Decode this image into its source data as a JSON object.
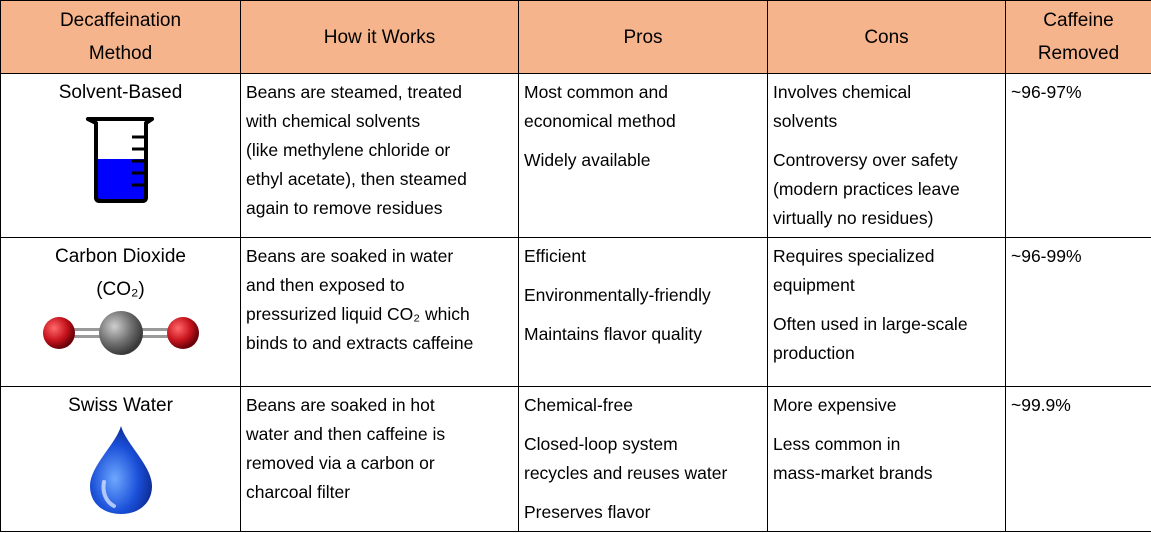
{
  "headers": [
    "Decaffeination Method",
    "How it Works",
    "Pros",
    "Cons",
    "Caffeine Removed"
  ],
  "header_lines": [
    [
      "Decaffeination",
      "Method"
    ],
    [
      "How it Works"
    ],
    [
      "Pros"
    ],
    [
      "Cons"
    ],
    [
      "Caffeine",
      "Removed"
    ]
  ],
  "rows": [
    {
      "method_lines": [
        "Solvent-Based"
      ],
      "icon": "beaker-icon",
      "how": [
        "Beans are steamed, treated",
        "with chemical solvents",
        "(like methylene chloride or",
        "ethyl acetate), then steamed",
        "again to remove residues"
      ],
      "pros": [
        [
          "Most common and",
          "economical method"
        ],
        [
          "Widely available"
        ]
      ],
      "cons": [
        [
          "Involves chemical",
          "solvents"
        ],
        [
          "Controversy over safety",
          "(modern practices leave",
          "virtually no residues)"
        ]
      ],
      "removed": "~96-97%"
    },
    {
      "method_lines": [
        "Carbon Dioxide",
        "(CO₂)"
      ],
      "icon": "co2-molecule-icon",
      "how": [
        "Beans are soaked in water",
        "and then exposed to",
        "pressurized liquid CO₂ which",
        "binds to and extracts caffeine"
      ],
      "pros": [
        [
          "Efficient"
        ],
        [
          "Environmentally-friendly"
        ],
        [
          "Maintains flavor quality"
        ]
      ],
      "cons": [
        [
          "Requires specialized",
          "equipment"
        ],
        [
          "Often used in large-scale",
          "production"
        ]
      ],
      "removed": "~96-99%"
    },
    {
      "method_lines": [
        "Swiss Water"
      ],
      "icon": "water-drop-icon",
      "how": [
        "Beans are soaked in hot",
        "water and then caffeine is",
        "removed via a carbon or",
        "charcoal filter"
      ],
      "pros": [
        [
          "Chemical-free"
        ],
        [
          "Closed-loop system",
          "recycles and reuses water"
        ],
        [
          "Preserves flavor"
        ]
      ],
      "cons": [
        [
          "More expensive"
        ],
        [
          "Less common in",
          "mass-market brands"
        ]
      ],
      "removed": "~99.9%"
    }
  ],
  "colors": {
    "header_bg": "#f6b48c",
    "beaker_liquid": "#0000ff",
    "drop_blue": "#1a4fd8",
    "co2_oxygen": "#c8141e",
    "co2_carbon": "#707070"
  }
}
